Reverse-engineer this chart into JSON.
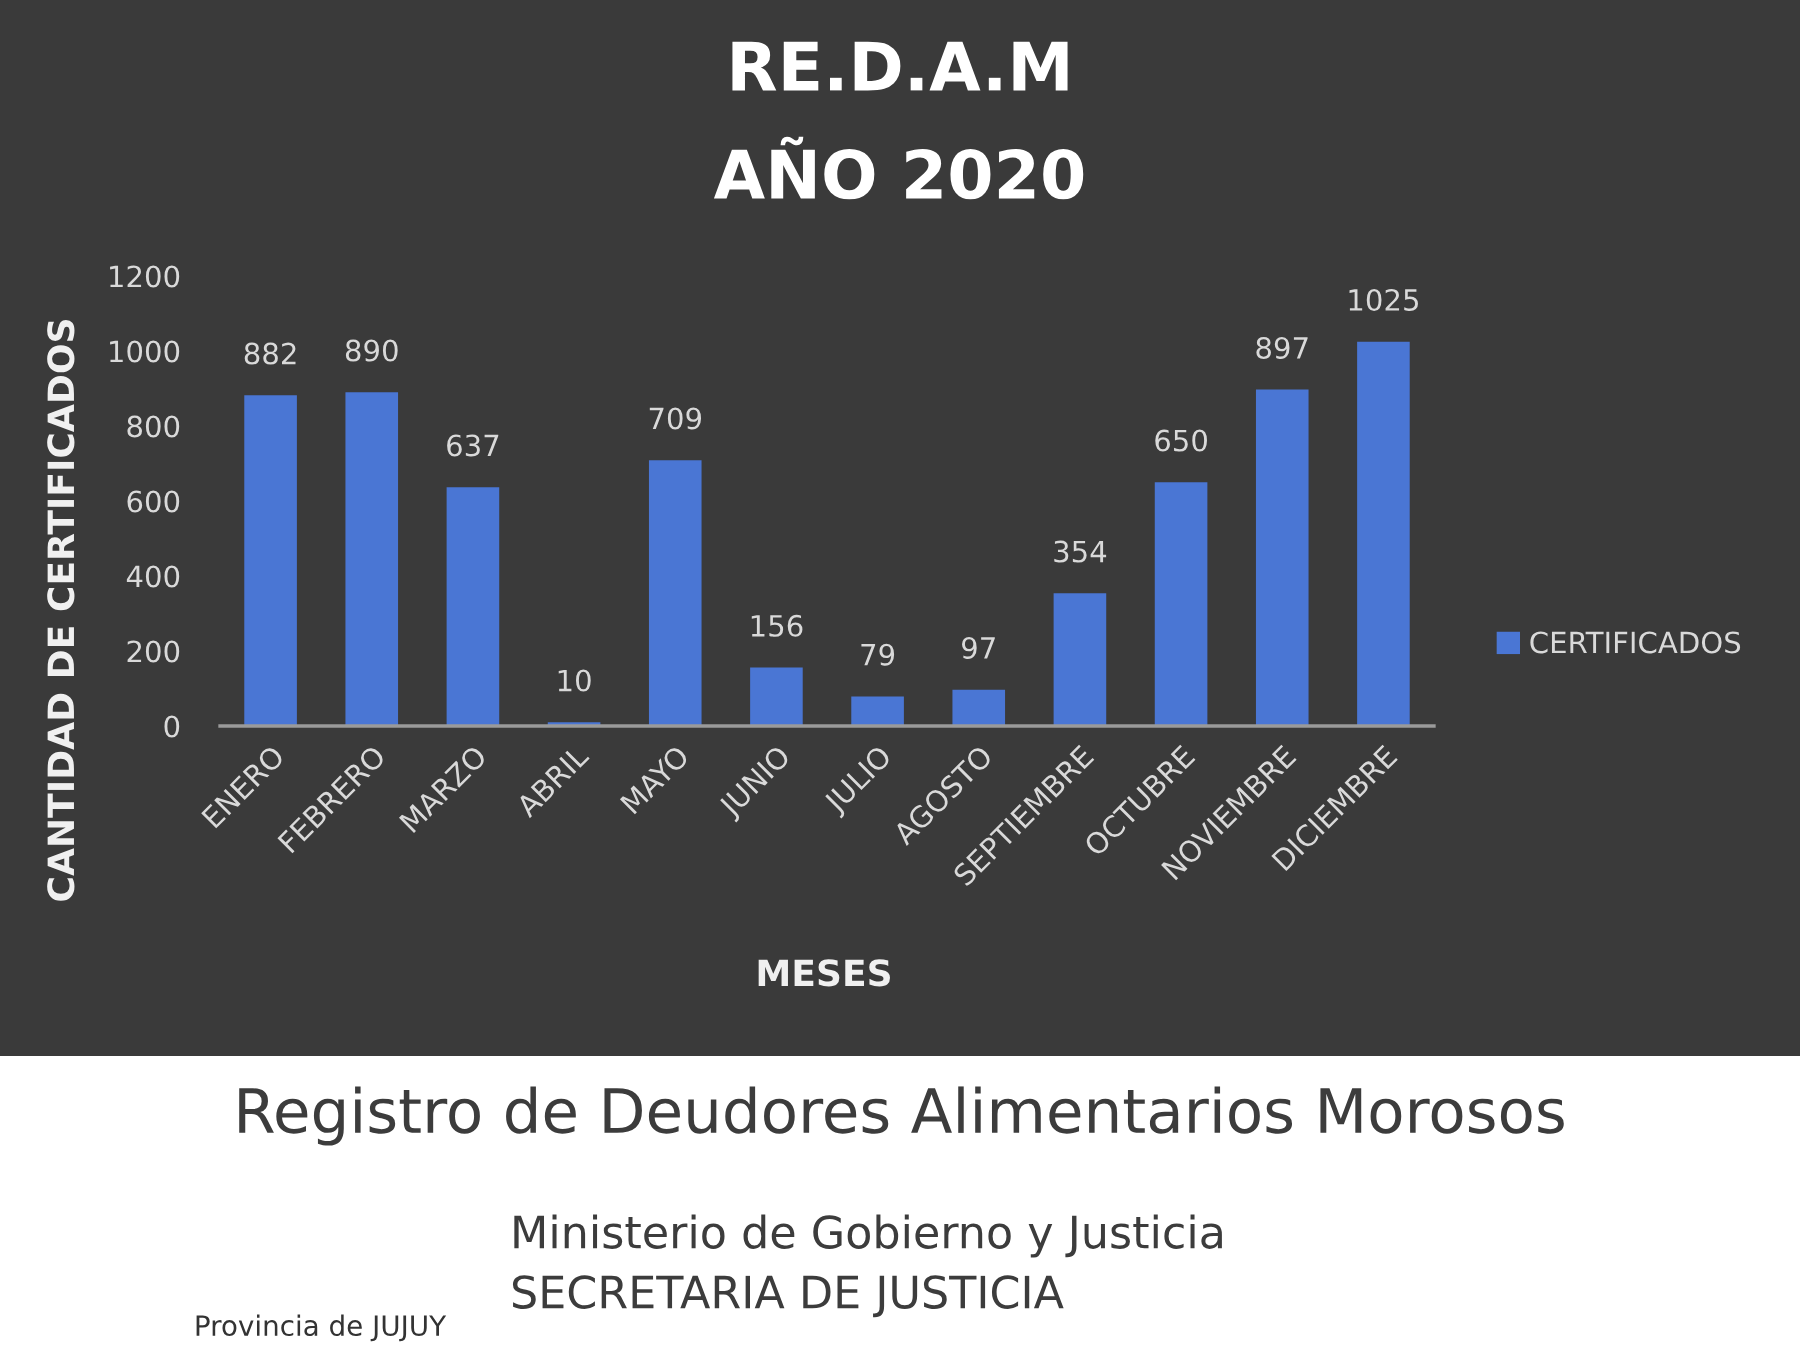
{
  "chart_data": {
    "type": "bar",
    "title": "RE.D.A.M",
    "subtitle": "AÑO 2020",
    "xlabel": "MESES",
    "ylabel": "CANTIDAD DE CERTIFICADOS",
    "categories": [
      "ENERO",
      "FEBRERO",
      "MARZO",
      "ABRIL",
      "MAYO",
      "JUNIO",
      "JULIO",
      "AGOSTO",
      "SEPTIEMBRE",
      "OCTUBRE",
      "NOVIEMBRE",
      "DICIEMBRE"
    ],
    "series": [
      {
        "name": "CERTIFICADOS",
        "color": "#4a76d4",
        "values": [
          882,
          890,
          637,
          10,
          709,
          156,
          79,
          97,
          354,
          650,
          897,
          1025
        ]
      }
    ],
    "ylim": [
      0,
      1200
    ],
    "yticks": [
      0,
      200,
      400,
      600,
      800,
      1000,
      1200
    ],
    "data_labels": true,
    "legend": "right",
    "annotations": [
      "Registro de Deudores Alimentarios Morosos",
      "Ministerio de Gobierno y Justicia",
      "SECRETARIA DE JUSTICIA",
      "Provincia de JUJUY"
    ]
  }
}
